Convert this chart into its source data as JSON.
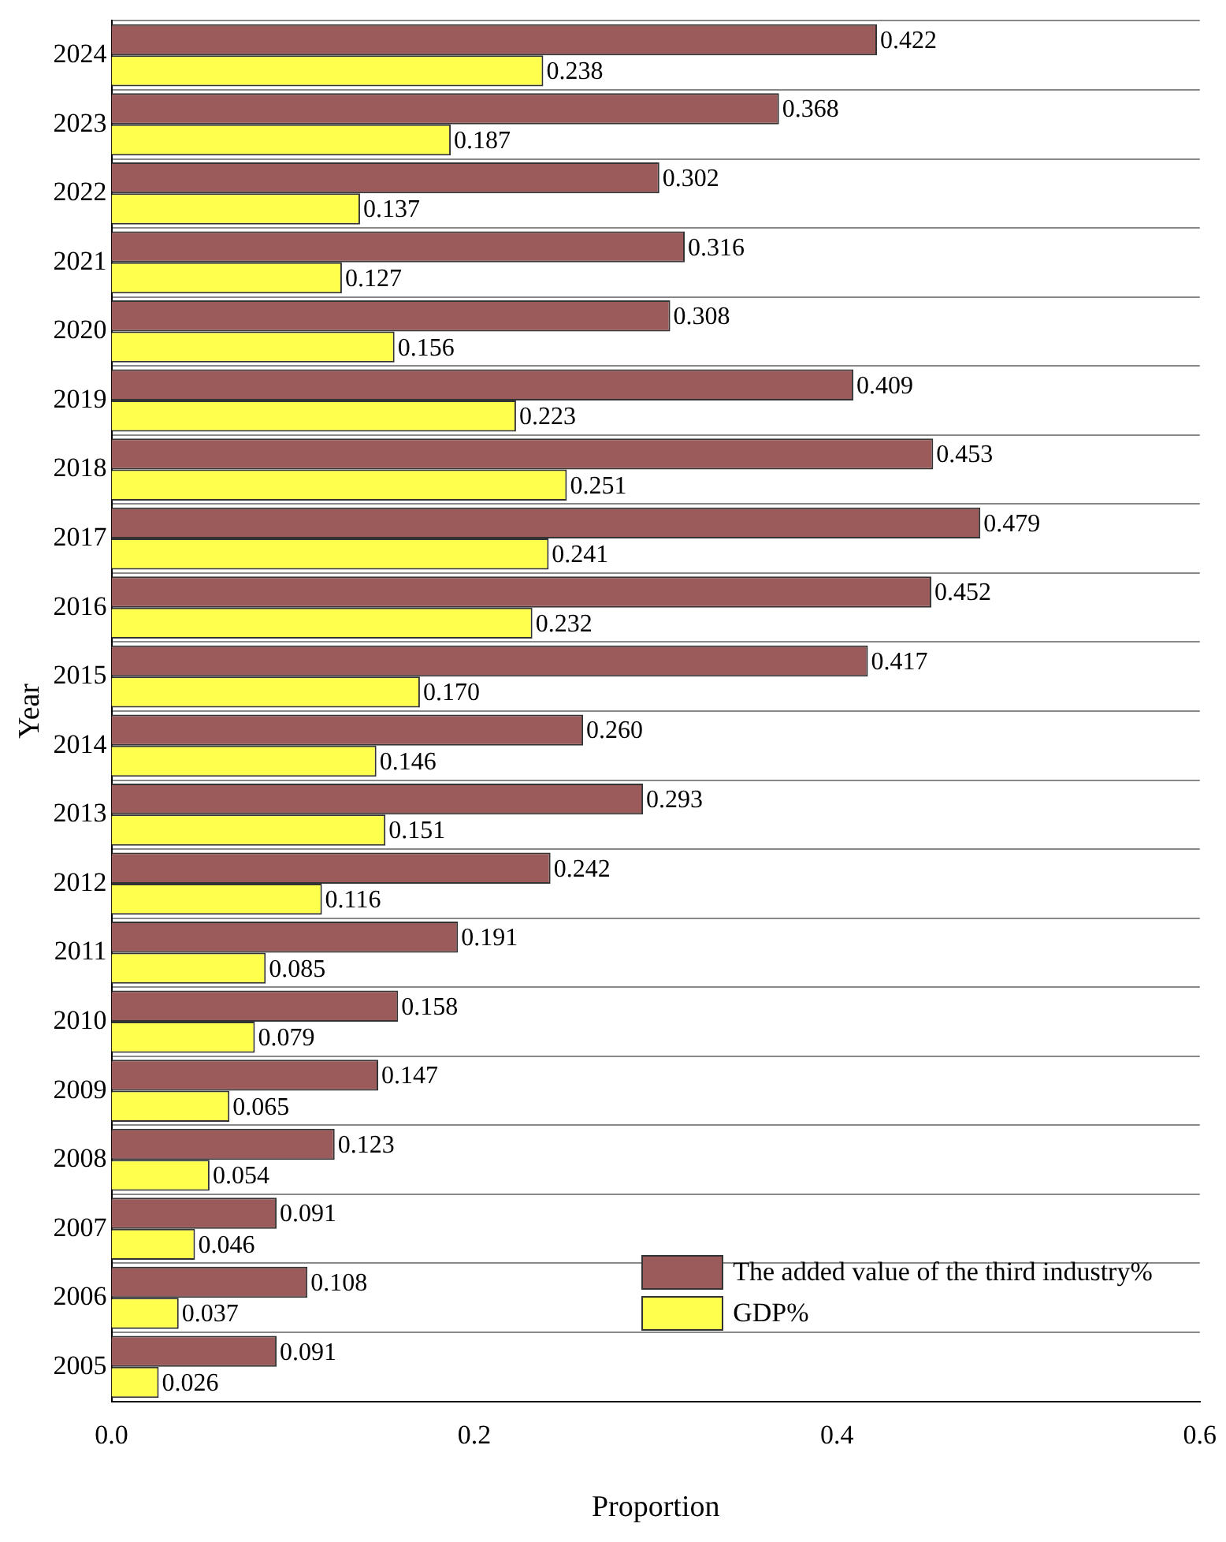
{
  "chart_data": {
    "type": "bar",
    "orientation": "horizontal",
    "xlabel": "Proportion",
    "ylabel": "Year",
    "categories": [
      "2024",
      "2023",
      "2022",
      "2021",
      "2020",
      "2019",
      "2018",
      "2017",
      "2016",
      "2015",
      "2014",
      "2013",
      "2012",
      "2011",
      "2010",
      "2009",
      "2008",
      "2007",
      "2006",
      "2005"
    ],
    "series": [
      {
        "name": "The added value of the third industry%",
        "color": "#9b5b5b",
        "values": [
          0.422,
          0.368,
          0.302,
          0.316,
          0.308,
          0.409,
          0.453,
          0.479,
          0.452,
          0.417,
          0.26,
          0.293,
          0.242,
          0.191,
          0.158,
          0.147,
          0.123,
          0.091,
          0.108,
          0.091
        ],
        "value_labels": [
          "0.422",
          "0.368",
          "0.302",
          "0.316",
          "0.308",
          "0.409",
          "0.453",
          "0.479",
          "0.452",
          "0.417",
          "0.260",
          "0.293",
          "0.242",
          "0.191",
          "0.158",
          "0.147",
          "0.123",
          "0.091",
          "0.108",
          "0.091"
        ]
      },
      {
        "name": "GDP%",
        "color": "#ffff4d",
        "values": [
          0.238,
          0.187,
          0.137,
          0.127,
          0.156,
          0.223,
          0.251,
          0.241,
          0.232,
          0.17,
          0.146,
          0.151,
          0.116,
          0.085,
          0.079,
          0.065,
          0.054,
          0.046,
          0.037,
          0.026
        ],
        "value_labels": [
          "0.238",
          "0.187",
          "0.137",
          "0.127",
          "0.156",
          "0.223",
          "0.251",
          "0.241",
          "0.232",
          "0.170",
          "0.146",
          "0.151",
          "0.116",
          "0.085",
          "0.079",
          "0.065",
          "0.054",
          "0.046",
          "0.037",
          "0.026"
        ]
      }
    ],
    "xlim": [
      0,
      0.6
    ],
    "xticks": [
      {
        "value": 0,
        "label": "0.0"
      },
      {
        "value": 0.2,
        "label": "0.2"
      },
      {
        "value": 0.4,
        "label": "0.4"
      },
      {
        "value": 0.6,
        "label": "0.6"
      }
    ],
    "grid": "y",
    "legend": "bottom right"
  }
}
